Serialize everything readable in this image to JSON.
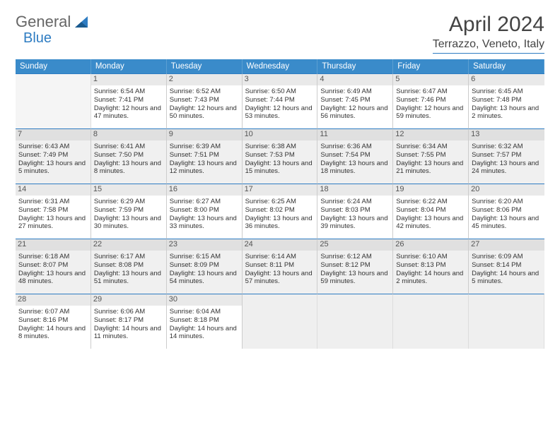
{
  "logo": {
    "part1": "General",
    "part2": "Blue"
  },
  "title": "April 2024",
  "location": "Terrazzo, Veneto, Italy",
  "daynames": [
    "Sunday",
    "Monday",
    "Tuesday",
    "Wednesday",
    "Thursday",
    "Friday",
    "Saturday"
  ],
  "colors": {
    "header_bg": "#3a8bca",
    "border_accent": "#2e7cc2",
    "alt_row": "#f0f0f0"
  },
  "start_blank": 1,
  "days": [
    {
      "n": 1,
      "sr": "6:54 AM",
      "ss": "7:41 PM",
      "dl": "12 hours and 47 minutes."
    },
    {
      "n": 2,
      "sr": "6:52 AM",
      "ss": "7:43 PM",
      "dl": "12 hours and 50 minutes."
    },
    {
      "n": 3,
      "sr": "6:50 AM",
      "ss": "7:44 PM",
      "dl": "12 hours and 53 minutes."
    },
    {
      "n": 4,
      "sr": "6:49 AM",
      "ss": "7:45 PM",
      "dl": "12 hours and 56 minutes."
    },
    {
      "n": 5,
      "sr": "6:47 AM",
      "ss": "7:46 PM",
      "dl": "12 hours and 59 minutes."
    },
    {
      "n": 6,
      "sr": "6:45 AM",
      "ss": "7:48 PM",
      "dl": "13 hours and 2 minutes."
    },
    {
      "n": 7,
      "sr": "6:43 AM",
      "ss": "7:49 PM",
      "dl": "13 hours and 5 minutes."
    },
    {
      "n": 8,
      "sr": "6:41 AM",
      "ss": "7:50 PM",
      "dl": "13 hours and 8 minutes."
    },
    {
      "n": 9,
      "sr": "6:39 AM",
      "ss": "7:51 PM",
      "dl": "13 hours and 12 minutes."
    },
    {
      "n": 10,
      "sr": "6:38 AM",
      "ss": "7:53 PM",
      "dl": "13 hours and 15 minutes."
    },
    {
      "n": 11,
      "sr": "6:36 AM",
      "ss": "7:54 PM",
      "dl": "13 hours and 18 minutes."
    },
    {
      "n": 12,
      "sr": "6:34 AM",
      "ss": "7:55 PM",
      "dl": "13 hours and 21 minutes."
    },
    {
      "n": 13,
      "sr": "6:32 AM",
      "ss": "7:57 PM",
      "dl": "13 hours and 24 minutes."
    },
    {
      "n": 14,
      "sr": "6:31 AM",
      "ss": "7:58 PM",
      "dl": "13 hours and 27 minutes."
    },
    {
      "n": 15,
      "sr": "6:29 AM",
      "ss": "7:59 PM",
      "dl": "13 hours and 30 minutes."
    },
    {
      "n": 16,
      "sr": "6:27 AM",
      "ss": "8:00 PM",
      "dl": "13 hours and 33 minutes."
    },
    {
      "n": 17,
      "sr": "6:25 AM",
      "ss": "8:02 PM",
      "dl": "13 hours and 36 minutes."
    },
    {
      "n": 18,
      "sr": "6:24 AM",
      "ss": "8:03 PM",
      "dl": "13 hours and 39 minutes."
    },
    {
      "n": 19,
      "sr": "6:22 AM",
      "ss": "8:04 PM",
      "dl": "13 hours and 42 minutes."
    },
    {
      "n": 20,
      "sr": "6:20 AM",
      "ss": "8:06 PM",
      "dl": "13 hours and 45 minutes."
    },
    {
      "n": 21,
      "sr": "6:18 AM",
      "ss": "8:07 PM",
      "dl": "13 hours and 48 minutes."
    },
    {
      "n": 22,
      "sr": "6:17 AM",
      "ss": "8:08 PM",
      "dl": "13 hours and 51 minutes."
    },
    {
      "n": 23,
      "sr": "6:15 AM",
      "ss": "8:09 PM",
      "dl": "13 hours and 54 minutes."
    },
    {
      "n": 24,
      "sr": "6:14 AM",
      "ss": "8:11 PM",
      "dl": "13 hours and 57 minutes."
    },
    {
      "n": 25,
      "sr": "6:12 AM",
      "ss": "8:12 PM",
      "dl": "13 hours and 59 minutes."
    },
    {
      "n": 26,
      "sr": "6:10 AM",
      "ss": "8:13 PM",
      "dl": "14 hours and 2 minutes."
    },
    {
      "n": 27,
      "sr": "6:09 AM",
      "ss": "8:14 PM",
      "dl": "14 hours and 5 minutes."
    },
    {
      "n": 28,
      "sr": "6:07 AM",
      "ss": "8:16 PM",
      "dl": "14 hours and 8 minutes."
    },
    {
      "n": 29,
      "sr": "6:06 AM",
      "ss": "8:17 PM",
      "dl": "14 hours and 11 minutes."
    },
    {
      "n": 30,
      "sr": "6:04 AM",
      "ss": "8:18 PM",
      "dl": "14 hours and 14 minutes."
    }
  ],
  "labels": {
    "sunrise": "Sunrise: ",
    "sunset": "Sunset: ",
    "daylight": "Daylight: "
  }
}
